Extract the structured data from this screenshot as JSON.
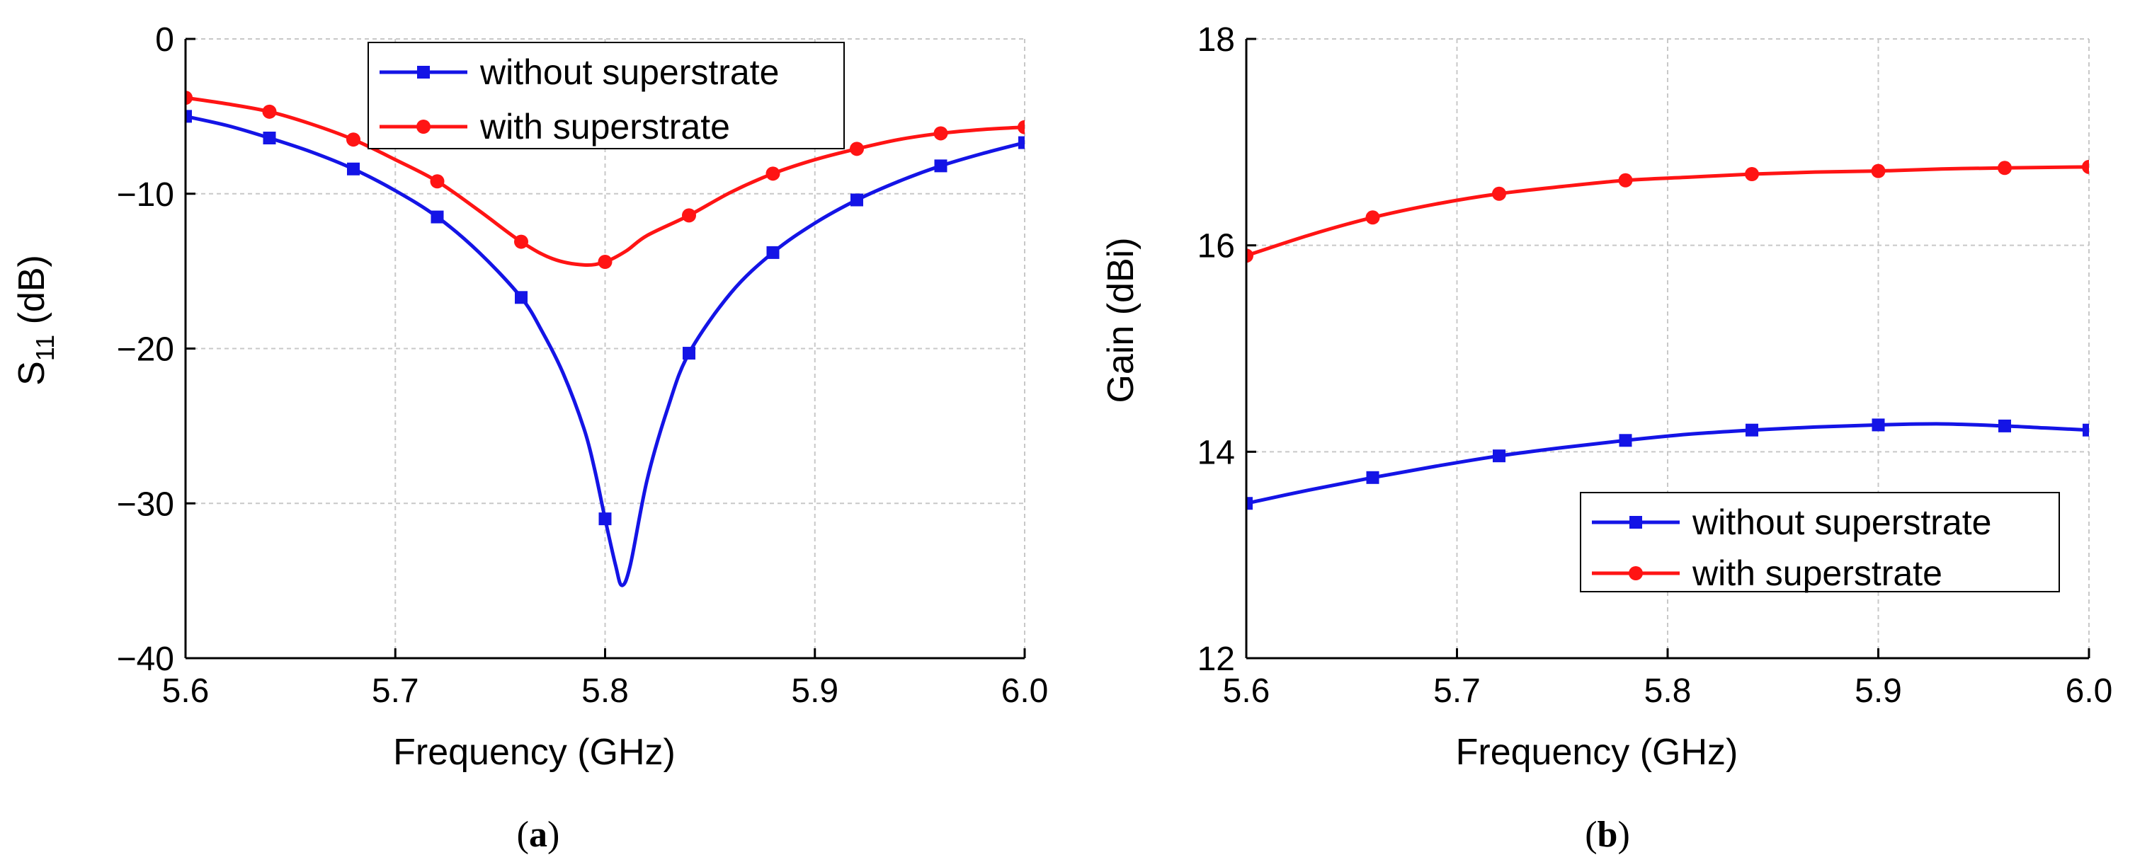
{
  "chart_data": [
    {
      "type": "line",
      "caption_letter": "a",
      "xlabel": "Frequency (GHz)",
      "ylabel_main": "S",
      "ylabel_sub": "11",
      "ylabel_unit": " (dB)",
      "xlim": [
        5.6,
        6.0
      ],
      "ylim": [
        -40,
        0
      ],
      "xticks": [
        5.6,
        5.7,
        5.8,
        5.9,
        6.0
      ],
      "xtick_labels": [
        "5.6",
        "5.7",
        "5.8",
        "5.9",
        "6.0"
      ],
      "yticks": [
        -40,
        -30,
        -20,
        -10,
        0
      ],
      "ytick_labels": [
        "−40",
        "−30",
        "−20",
        "−10",
        "0"
      ],
      "grid": true,
      "legend_position": "top-center",
      "series": [
        {
          "name": "without superstrate",
          "color": "#1414e6",
          "marker": "square",
          "x": [
            5.6,
            5.64,
            5.68,
            5.72,
            5.76,
            5.8,
            5.84,
            5.88,
            5.92,
            5.96,
            6.0
          ],
          "values": [
            -5.0,
            -6.4,
            -8.4,
            -11.5,
            -16.7,
            -31.0,
            -20.3,
            -13.8,
            -10.4,
            -8.2,
            -6.7
          ],
          "curve_x": [
            5.6,
            5.62,
            5.64,
            5.66,
            5.68,
            5.7,
            5.72,
            5.74,
            5.76,
            5.77,
            5.78,
            5.79,
            5.795,
            5.8,
            5.805,
            5.808,
            5.812,
            5.82,
            5.83,
            5.84,
            5.86,
            5.88,
            5.9,
            5.92,
            5.94,
            5.96,
            5.98,
            6.0
          ],
          "curve_values": [
            -5.0,
            -5.6,
            -6.4,
            -7.3,
            -8.4,
            -9.8,
            -11.5,
            -13.8,
            -16.7,
            -18.9,
            -21.6,
            -25.2,
            -27.8,
            -31.0,
            -34.0,
            -35.3,
            -34.0,
            -28.5,
            -23.8,
            -20.3,
            -16.4,
            -13.8,
            -11.9,
            -10.4,
            -9.2,
            -8.2,
            -7.4,
            -6.7
          ]
        },
        {
          "name": "with superstrate",
          "color": "#ff1414",
          "marker": "circle",
          "x": [
            5.6,
            5.64,
            5.68,
            5.72,
            5.76,
            5.8,
            5.84,
            5.88,
            5.92,
            5.96,
            6.0
          ],
          "values": [
            -3.8,
            -4.7,
            -6.5,
            -9.2,
            -13.1,
            -14.4,
            -11.4,
            -8.7,
            -7.1,
            -6.1,
            -5.7
          ],
          "curve_x": [
            5.6,
            5.62,
            5.64,
            5.66,
            5.68,
            5.7,
            5.72,
            5.74,
            5.76,
            5.775,
            5.79,
            5.8,
            5.81,
            5.82,
            5.84,
            5.86,
            5.88,
            5.9,
            5.92,
            5.94,
            5.96,
            5.98,
            6.0
          ],
          "curve_values": [
            -3.8,
            -4.2,
            -4.7,
            -5.5,
            -6.5,
            -7.8,
            -9.2,
            -11.1,
            -13.1,
            -14.2,
            -14.6,
            -14.4,
            -13.7,
            -12.7,
            -11.4,
            -9.9,
            -8.7,
            -7.8,
            -7.1,
            -6.5,
            -6.1,
            -5.85,
            -5.7
          ]
        }
      ]
    },
    {
      "type": "line",
      "caption_letter": "b",
      "xlabel": "Frequency (GHz)",
      "ylabel_main": "Gain (dBi)",
      "ylabel_sub": "",
      "ylabel_unit": "",
      "xlim": [
        5.6,
        6.0
      ],
      "ylim": [
        12,
        18
      ],
      "xticks": [
        5.6,
        5.7,
        5.8,
        5.9,
        6.0
      ],
      "xtick_labels": [
        "5.6",
        "5.7",
        "5.8",
        "5.9",
        "6.0"
      ],
      "yticks": [
        12,
        14,
        16,
        18
      ],
      "ytick_labels": [
        "12",
        "14",
        "16",
        "18"
      ],
      "grid": true,
      "legend_position": "lower-right",
      "series": [
        {
          "name": "without superstrate",
          "color": "#1414e6",
          "marker": "square",
          "x": [
            5.6,
            5.66,
            5.72,
            5.78,
            5.84,
            5.9,
            5.96,
            6.0
          ],
          "values": [
            13.5,
            13.75,
            13.96,
            14.11,
            14.21,
            14.26,
            14.25,
            14.21
          ],
          "curve_x": [
            5.6,
            5.63,
            5.66,
            5.69,
            5.72,
            5.75,
            5.78,
            5.81,
            5.84,
            5.87,
            5.9,
            5.93,
            5.96,
            5.98,
            6.0
          ],
          "curve_values": [
            13.5,
            13.63,
            13.75,
            13.86,
            13.96,
            14.04,
            14.11,
            14.17,
            14.21,
            14.24,
            14.26,
            14.27,
            14.25,
            14.23,
            14.21
          ]
        },
        {
          "name": "with superstrate",
          "color": "#ff1414",
          "marker": "circle",
          "x": [
            5.6,
            5.66,
            5.72,
            5.78,
            5.84,
            5.9,
            5.96,
            6.0
          ],
          "values": [
            15.9,
            16.27,
            16.5,
            16.63,
            16.69,
            16.72,
            16.75,
            16.76
          ],
          "curve_x": [
            5.6,
            5.63,
            5.66,
            5.69,
            5.72,
            5.75,
            5.78,
            5.81,
            5.84,
            5.87,
            5.9,
            5.93,
            5.96,
            6.0
          ],
          "curve_values": [
            15.9,
            16.1,
            16.27,
            16.4,
            16.5,
            16.57,
            16.63,
            16.66,
            16.69,
            16.71,
            16.72,
            16.74,
            16.75,
            16.76
          ]
        }
      ]
    }
  ]
}
